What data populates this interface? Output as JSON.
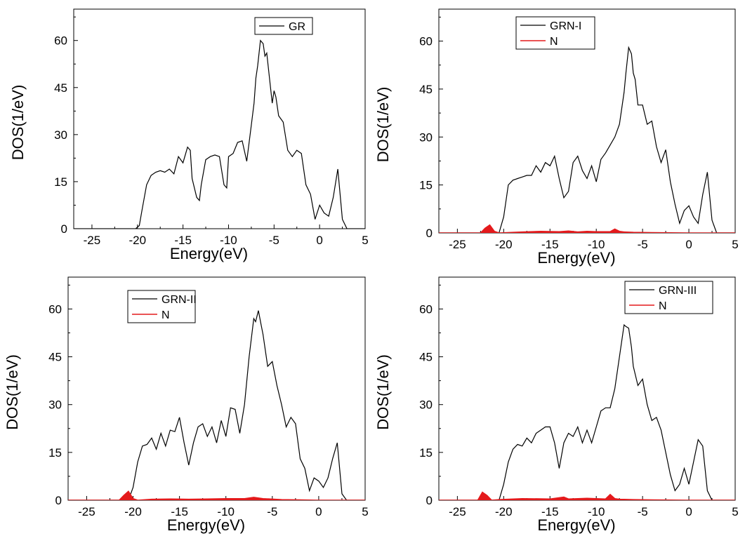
{
  "chart_data": [
    {
      "type": "line",
      "xlabel": "Energy(eV)",
      "ylabel": "DOS(1/eV)",
      "xlim": [
        -27,
        5
      ],
      "ylim": [
        0,
        70
      ],
      "xticks": [
        -25,
        -20,
        -15,
        -10,
        -5,
        0,
        5
      ],
      "yticks": [
        0,
        15,
        30,
        45,
        60
      ],
      "legend_position": "top-right",
      "series": [
        {
          "name": "GR",
          "color": "#000000",
          "x": [
            -27,
            -20.2,
            -19.8,
            -19.5,
            -19,
            -18.5,
            -18,
            -17.5,
            -17,
            -16.5,
            -16,
            -15.5,
            -15,
            -14.5,
            -14.2,
            -14,
            -13.5,
            -13.2,
            -13,
            -12.5,
            -12,
            -11.5,
            -11,
            -10.5,
            -10.2,
            -10,
            -9.5,
            -9,
            -8.5,
            -8,
            -7.5,
            -7.2,
            -7,
            -6.8,
            -6.5,
            -6.2,
            -6,
            -5.8,
            -5.5,
            -5.2,
            -5,
            -4.8,
            -4.5,
            -4,
            -3.5,
            -3,
            -2.5,
            -2,
            -1.5,
            -1,
            -0.5,
            0,
            0.5,
            1,
            1.5,
            2,
            2.5,
            3,
            5
          ],
          "y": [
            0,
            0,
            1,
            6,
            14,
            17,
            18,
            18.5,
            18,
            19,
            17.5,
            23,
            21,
            26,
            25,
            16,
            10,
            9,
            14,
            22,
            23,
            23.5,
            23,
            14,
            13,
            23,
            24,
            27.5,
            28,
            21.5,
            33,
            40,
            48,
            52,
            60,
            59,
            55,
            56,
            48,
            40,
            44,
            42,
            36,
            34,
            25,
            23,
            25,
            24,
            14,
            11,
            3,
            7.5,
            5,
            4,
            10,
            19,
            3,
            0,
            0
          ]
        }
      ]
    },
    {
      "type": "line",
      "xlabel": "Energy(eV)",
      "ylabel": "DOS(1/eV)",
      "xlim": [
        -27,
        5
      ],
      "ylim": [
        0,
        70
      ],
      "xticks": [
        -25,
        -20,
        -15,
        -10,
        -5,
        0,
        5
      ],
      "yticks": [
        0,
        15,
        30,
        45,
        60
      ],
      "legend_position": "top-right",
      "series": [
        {
          "name": "GRN-I",
          "color": "#000000",
          "x": [
            -27,
            -20.5,
            -20,
            -19.5,
            -19,
            -18.5,
            -18,
            -17.5,
            -17,
            -16.5,
            -16,
            -15.5,
            -15,
            -14.5,
            -14,
            -13.5,
            -13,
            -12.5,
            -12,
            -11.5,
            -11,
            -10.5,
            -10,
            -9.5,
            -9,
            -8.5,
            -8,
            -7.5,
            -7,
            -6.8,
            -6.5,
            -6.2,
            -6,
            -5.8,
            -5.5,
            -5,
            -4.5,
            -4,
            -3.5,
            -3,
            -2.5,
            -2,
            -1.5,
            -1,
            -0.5,
            0,
            0.5,
            1,
            1.5,
            2,
            2.5,
            3,
            5
          ],
          "y": [
            0,
            0,
            5,
            15,
            16.5,
            17,
            17.5,
            18,
            18,
            21,
            19,
            22,
            21,
            24,
            17,
            11,
            13,
            22,
            24,
            19.5,
            17,
            21,
            16,
            23,
            25,
            27.5,
            30,
            34,
            44,
            50,
            58,
            56,
            50,
            48,
            40,
            40,
            34,
            35,
            27,
            22,
            26,
            16,
            9,
            3,
            7,
            8.5,
            5,
            3,
            12,
            19,
            4,
            0,
            0
          ]
        },
        {
          "name": "N",
          "color": "#e41a1c",
          "x": [
            -27,
            -22.5,
            -22,
            -21.5,
            -21,
            -20.5,
            -18,
            -16,
            -14,
            -13,
            -12,
            -11,
            -10,
            -8.5,
            -8,
            -7.5,
            -7,
            -6,
            -4,
            -2,
            0,
            5
          ],
          "y": [
            0,
            0,
            1.5,
            2.5,
            0.5,
            0,
            0.3,
            0.5,
            0.4,
            0.6,
            0.3,
            0.5,
            0.4,
            0.4,
            1.2,
            0.5,
            0.3,
            0.2,
            0.1,
            0.05,
            0,
            0
          ]
        }
      ]
    },
    {
      "type": "line",
      "xlabel": "Energy(eV)",
      "ylabel": "DOS(1/eV)",
      "xlim": [
        -27,
        5
      ],
      "ylim": [
        0,
        70
      ],
      "xticks": [
        -25,
        -20,
        -15,
        -10,
        -5,
        0,
        5
      ],
      "yticks": [
        0,
        15,
        30,
        45,
        60
      ],
      "legend_position": "top-left",
      "series": [
        {
          "name": "GRN-II",
          "color": "#000000",
          "x": [
            -27,
            -20.5,
            -20,
            -19.5,
            -19,
            -18.5,
            -18,
            -17.5,
            -17,
            -16.5,
            -16,
            -15.5,
            -15,
            -14.5,
            -14,
            -13.5,
            -13,
            -12.5,
            -12,
            -11.5,
            -11,
            -10.5,
            -10,
            -9.5,
            -9,
            -8.5,
            -8,
            -7.5,
            -7,
            -6.8,
            -6.5,
            -6.2,
            -6,
            -5.5,
            -5,
            -4.5,
            -4,
            -3.5,
            -3,
            -2.5,
            -2,
            -1.5,
            -1,
            -0.5,
            0,
            0.5,
            1,
            1.5,
            2,
            2.5,
            3,
            5
          ],
          "y": [
            0,
            0,
            4,
            12,
            17,
            17.5,
            19.5,
            16,
            21,
            17,
            22,
            21.5,
            26,
            18,
            11,
            18,
            23,
            24,
            20,
            23,
            18,
            25,
            20,
            29,
            28.5,
            21,
            30,
            45,
            57,
            56,
            59.5,
            55,
            52,
            42,
            43.5,
            36,
            30,
            23,
            26,
            24,
            13,
            10,
            3,
            7,
            6,
            4,
            7,
            13,
            18,
            2,
            0,
            0
          ]
        },
        {
          "name": "N",
          "color": "#e41a1c",
          "x": [
            -27,
            -21.5,
            -21,
            -20.5,
            -20,
            -19.5,
            -18,
            -16,
            -14,
            -12,
            -10,
            -8,
            -7,
            -6,
            -4,
            -2,
            0,
            5
          ],
          "y": [
            0,
            0,
            1.5,
            2.8,
            0.5,
            0,
            0.3,
            0.4,
            0.3,
            0.4,
            0.5,
            0.5,
            0.9,
            0.5,
            0.2,
            0.1,
            0,
            0
          ]
        }
      ]
    },
    {
      "type": "line",
      "xlabel": "Energy(eV)",
      "ylabel": "DOS(1/eV)",
      "xlim": [
        -27,
        5
      ],
      "ylim": [
        0,
        70
      ],
      "xticks": [
        -25,
        -20,
        -15,
        -10,
        -5,
        0,
        5
      ],
      "yticks": [
        0,
        15,
        30,
        45,
        60
      ],
      "legend_position": "top-right",
      "series": [
        {
          "name": "GRN-III",
          "color": "#000000",
          "x": [
            -27,
            -20.5,
            -20,
            -19.5,
            -19,
            -18.5,
            -18,
            -17.5,
            -17,
            -16.5,
            -16,
            -15.5,
            -15,
            -14.5,
            -14,
            -13.5,
            -13,
            -12.5,
            -12,
            -11.5,
            -11,
            -10.5,
            -10,
            -9.5,
            -9,
            -8.5,
            -8,
            -7.5,
            -7,
            -6.8,
            -6.5,
            -6.2,
            -6,
            -5.5,
            -5,
            -4.5,
            -4,
            -3.5,
            -3,
            -2.5,
            -2,
            -1.5,
            -1,
            -0.5,
            0,
            0.5,
            1,
            1.5,
            2,
            2.5,
            3,
            5
          ],
          "y": [
            0,
            0,
            5,
            12,
            16,
            17.5,
            17,
            19.5,
            18,
            21,
            22,
            23,
            23,
            18,
            10,
            18,
            21,
            20,
            23,
            18,
            22,
            18,
            23,
            28,
            29,
            29,
            35,
            45,
            55,
            54.5,
            54,
            48,
            42,
            36,
            38,
            30,
            25,
            26,
            22,
            15,
            8,
            3,
            5,
            10,
            5,
            12,
            19,
            17,
            3,
            0,
            0,
            0
          ]
        },
        {
          "name": "N",
          "color": "#e41a1c",
          "x": [
            -27,
            -22.8,
            -22.3,
            -21.8,
            -21.3,
            -20.5,
            -18,
            -15,
            -13.5,
            -13,
            -11,
            -9,
            -8.5,
            -8,
            -7.5,
            -6,
            -4,
            0,
            5
          ],
          "y": [
            0,
            0,
            2.5,
            1.5,
            0,
            0.2,
            0.5,
            0.4,
            1.0,
            0.4,
            0.6,
            0.4,
            1.8,
            0.5,
            0.3,
            0.2,
            0.1,
            0,
            0
          ]
        }
      ]
    }
  ]
}
